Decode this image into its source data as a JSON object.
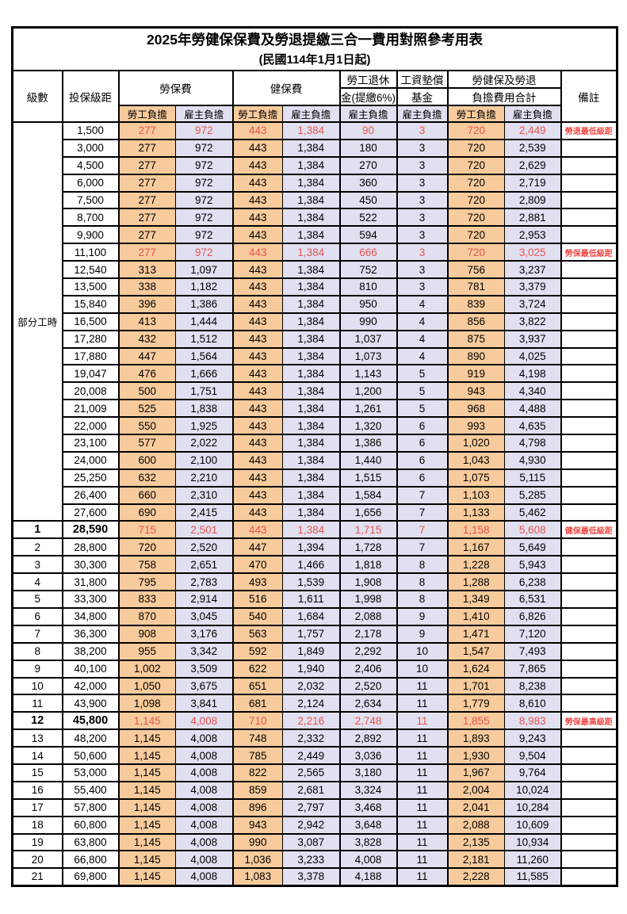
{
  "title": "2025年勞健保保費及勞退提繳三合一費用對照參考用表",
  "subtitle": "(民國114年1月1日起)",
  "header": {
    "level": "級數",
    "bracket": "投保級距",
    "labor_ins": "勞保費",
    "health_ins": "健保費",
    "pension_line1": "勞工退休",
    "pension_line2": "金(提繳6%)",
    "wage_fund_line1": "工資墊償",
    "wage_fund_line2": "基金",
    "total_line1": "勞健保及勞退",
    "total_line2": "負擔費用合計",
    "remark": "備註",
    "employee": "勞工負擔",
    "employer": "雇主負擔"
  },
  "group_label": "部分工時",
  "group_span": 23,
  "colors": {
    "employee_bg": "#f8cb9c",
    "employer_bg": "#e0e0f0",
    "highlight_text": "#e8534f",
    "remark_text": "#ef4a45"
  },
  "rows": [
    {
      "level": "",
      "bracket": "1,500",
      "li_e": "277",
      "li_r": "972",
      "hi_e": "443",
      "hi_r": "1,384",
      "pen": "90",
      "fund": "3",
      "to_e": "720",
      "to_r": "2,449",
      "rem": "勞退最低級距",
      "hl": true,
      "bold": false
    },
    {
      "level": "",
      "bracket": "3,000",
      "li_e": "277",
      "li_r": "972",
      "hi_e": "443",
      "hi_r": "1,384",
      "pen": "180",
      "fund": "3",
      "to_e": "720",
      "to_r": "2,539",
      "rem": "",
      "hl": false,
      "bold": false
    },
    {
      "level": "",
      "bracket": "4,500",
      "li_e": "277",
      "li_r": "972",
      "hi_e": "443",
      "hi_r": "1,384",
      "pen": "270",
      "fund": "3",
      "to_e": "720",
      "to_r": "2,629",
      "rem": "",
      "hl": false,
      "bold": false
    },
    {
      "level": "",
      "bracket": "6,000",
      "li_e": "277",
      "li_r": "972",
      "hi_e": "443",
      "hi_r": "1,384",
      "pen": "360",
      "fund": "3",
      "to_e": "720",
      "to_r": "2,719",
      "rem": "",
      "hl": false,
      "bold": false
    },
    {
      "level": "",
      "bracket": "7,500",
      "li_e": "277",
      "li_r": "972",
      "hi_e": "443",
      "hi_r": "1,384",
      "pen": "450",
      "fund": "3",
      "to_e": "720",
      "to_r": "2,809",
      "rem": "",
      "hl": false,
      "bold": false
    },
    {
      "level": "",
      "bracket": "8,700",
      "li_e": "277",
      "li_r": "972",
      "hi_e": "443",
      "hi_r": "1,384",
      "pen": "522",
      "fund": "3",
      "to_e": "720",
      "to_r": "2,881",
      "rem": "",
      "hl": false,
      "bold": false
    },
    {
      "level": "",
      "bracket": "9,900",
      "li_e": "277",
      "li_r": "972",
      "hi_e": "443",
      "hi_r": "1,384",
      "pen": "594",
      "fund": "3",
      "to_e": "720",
      "to_r": "2,953",
      "rem": "",
      "hl": false,
      "bold": false
    },
    {
      "level": "",
      "bracket": "11,100",
      "li_e": "277",
      "li_r": "972",
      "hi_e": "443",
      "hi_r": "1,384",
      "pen": "666",
      "fund": "3",
      "to_e": "720",
      "to_r": "3,025",
      "rem": "勞保最低級距",
      "hl": true,
      "bold": false
    },
    {
      "level": "",
      "bracket": "12,540",
      "li_e": "313",
      "li_r": "1,097",
      "hi_e": "443",
      "hi_r": "1,384",
      "pen": "752",
      "fund": "3",
      "to_e": "756",
      "to_r": "3,237",
      "rem": "",
      "hl": false,
      "bold": false
    },
    {
      "level": "",
      "bracket": "13,500",
      "li_e": "338",
      "li_r": "1,182",
      "hi_e": "443",
      "hi_r": "1,384",
      "pen": "810",
      "fund": "3",
      "to_e": "781",
      "to_r": "3,379",
      "rem": "",
      "hl": false,
      "bold": false
    },
    {
      "level": "",
      "bracket": "15,840",
      "li_e": "396",
      "li_r": "1,386",
      "hi_e": "443",
      "hi_r": "1,384",
      "pen": "950",
      "fund": "4",
      "to_e": "839",
      "to_r": "3,724",
      "rem": "",
      "hl": false,
      "bold": false
    },
    {
      "level": "",
      "bracket": "16,500",
      "li_e": "413",
      "li_r": "1,444",
      "hi_e": "443",
      "hi_r": "1,384",
      "pen": "990",
      "fund": "4",
      "to_e": "856",
      "to_r": "3,822",
      "rem": "",
      "hl": false,
      "bold": false
    },
    {
      "level": "",
      "bracket": "17,280",
      "li_e": "432",
      "li_r": "1,512",
      "hi_e": "443",
      "hi_r": "1,384",
      "pen": "1,037",
      "fund": "4",
      "to_e": "875",
      "to_r": "3,937",
      "rem": "",
      "hl": false,
      "bold": false
    },
    {
      "level": "",
      "bracket": "17,880",
      "li_e": "447",
      "li_r": "1,564",
      "hi_e": "443",
      "hi_r": "1,384",
      "pen": "1,073",
      "fund": "4",
      "to_e": "890",
      "to_r": "4,025",
      "rem": "",
      "hl": false,
      "bold": false
    },
    {
      "level": "",
      "bracket": "19,047",
      "li_e": "476",
      "li_r": "1,666",
      "hi_e": "443",
      "hi_r": "1,384",
      "pen": "1,143",
      "fund": "5",
      "to_e": "919",
      "to_r": "4,198",
      "rem": "",
      "hl": false,
      "bold": false
    },
    {
      "level": "",
      "bracket": "20,008",
      "li_e": "500",
      "li_r": "1,751",
      "hi_e": "443",
      "hi_r": "1,384",
      "pen": "1,200",
      "fund": "5",
      "to_e": "943",
      "to_r": "4,340",
      "rem": "",
      "hl": false,
      "bold": false
    },
    {
      "level": "",
      "bracket": "21,009",
      "li_e": "525",
      "li_r": "1,838",
      "hi_e": "443",
      "hi_r": "1,384",
      "pen": "1,261",
      "fund": "5",
      "to_e": "968",
      "to_r": "4,488",
      "rem": "",
      "hl": false,
      "bold": false
    },
    {
      "level": "",
      "bracket": "22,000",
      "li_e": "550",
      "li_r": "1,925",
      "hi_e": "443",
      "hi_r": "1,384",
      "pen": "1,320",
      "fund": "6",
      "to_e": "993",
      "to_r": "4,635",
      "rem": "",
      "hl": false,
      "bold": false
    },
    {
      "level": "",
      "bracket": "23,100",
      "li_e": "577",
      "li_r": "2,022",
      "hi_e": "443",
      "hi_r": "1,384",
      "pen": "1,386",
      "fund": "6",
      "to_e": "1,020",
      "to_r": "4,798",
      "rem": "",
      "hl": false,
      "bold": false
    },
    {
      "level": "",
      "bracket": "24,000",
      "li_e": "600",
      "li_r": "2,100",
      "hi_e": "443",
      "hi_r": "1,384",
      "pen": "1,440",
      "fund": "6",
      "to_e": "1,043",
      "to_r": "4,930",
      "rem": "",
      "hl": false,
      "bold": false
    },
    {
      "level": "",
      "bracket": "25,250",
      "li_e": "632",
      "li_r": "2,210",
      "hi_e": "443",
      "hi_r": "1,384",
      "pen": "1,515",
      "fund": "6",
      "to_e": "1,075",
      "to_r": "5,115",
      "rem": "",
      "hl": false,
      "bold": false
    },
    {
      "level": "",
      "bracket": "26,400",
      "li_e": "660",
      "li_r": "2,310",
      "hi_e": "443",
      "hi_r": "1,384",
      "pen": "1,584",
      "fund": "7",
      "to_e": "1,103",
      "to_r": "5,285",
      "rem": "",
      "hl": false,
      "bold": false
    },
    {
      "level": "",
      "bracket": "27,600",
      "li_e": "690",
      "li_r": "2,415",
      "hi_e": "443",
      "hi_r": "1,384",
      "pen": "1,656",
      "fund": "7",
      "to_e": "1,133",
      "to_r": "5,462",
      "rem": "",
      "hl": false,
      "bold": false
    },
    {
      "level": "1",
      "bracket": "28,590",
      "li_e": "715",
      "li_r": "2,501",
      "hi_e": "443",
      "hi_r": "1,384",
      "pen": "1,715",
      "fund": "7",
      "to_e": "1,158",
      "to_r": "5,608",
      "rem": "健保最低級距",
      "hl": true,
      "bold": true
    },
    {
      "level": "2",
      "bracket": "28,800",
      "li_e": "720",
      "li_r": "2,520",
      "hi_e": "447",
      "hi_r": "1,394",
      "pen": "1,728",
      "fund": "7",
      "to_e": "1,167",
      "to_r": "5,649",
      "rem": "",
      "hl": false,
      "bold": false
    },
    {
      "level": "3",
      "bracket": "30,300",
      "li_e": "758",
      "li_r": "2,651",
      "hi_e": "470",
      "hi_r": "1,466",
      "pen": "1,818",
      "fund": "8",
      "to_e": "1,228",
      "to_r": "5,943",
      "rem": "",
      "hl": false,
      "bold": false
    },
    {
      "level": "4",
      "bracket": "31,800",
      "li_e": "795",
      "li_r": "2,783",
      "hi_e": "493",
      "hi_r": "1,539",
      "pen": "1,908",
      "fund": "8",
      "to_e": "1,288",
      "to_r": "6,238",
      "rem": "",
      "hl": false,
      "bold": false
    },
    {
      "level": "5",
      "bracket": "33,300",
      "li_e": "833",
      "li_r": "2,914",
      "hi_e": "516",
      "hi_r": "1,611",
      "pen": "1,998",
      "fund": "8",
      "to_e": "1,349",
      "to_r": "6,531",
      "rem": "",
      "hl": false,
      "bold": false
    },
    {
      "level": "6",
      "bracket": "34,800",
      "li_e": "870",
      "li_r": "3,045",
      "hi_e": "540",
      "hi_r": "1,684",
      "pen": "2,088",
      "fund": "9",
      "to_e": "1,410",
      "to_r": "6,826",
      "rem": "",
      "hl": false,
      "bold": false
    },
    {
      "level": "7",
      "bracket": "36,300",
      "li_e": "908",
      "li_r": "3,176",
      "hi_e": "563",
      "hi_r": "1,757",
      "pen": "2,178",
      "fund": "9",
      "to_e": "1,471",
      "to_r": "7,120",
      "rem": "",
      "hl": false,
      "bold": false
    },
    {
      "level": "8",
      "bracket": "38,200",
      "li_e": "955",
      "li_r": "3,342",
      "hi_e": "592",
      "hi_r": "1,849",
      "pen": "2,292",
      "fund": "10",
      "to_e": "1,547",
      "to_r": "7,493",
      "rem": "",
      "hl": false,
      "bold": false
    },
    {
      "level": "9",
      "bracket": "40,100",
      "li_e": "1,002",
      "li_r": "3,509",
      "hi_e": "622",
      "hi_r": "1,940",
      "pen": "2,406",
      "fund": "10",
      "to_e": "1,624",
      "to_r": "7,865",
      "rem": "",
      "hl": false,
      "bold": false
    },
    {
      "level": "10",
      "bracket": "42,000",
      "li_e": "1,050",
      "li_r": "3,675",
      "hi_e": "651",
      "hi_r": "2,032",
      "pen": "2,520",
      "fund": "11",
      "to_e": "1,701",
      "to_r": "8,238",
      "rem": "",
      "hl": false,
      "bold": false
    },
    {
      "level": "11",
      "bracket": "43,900",
      "li_e": "1,098",
      "li_r": "3,841",
      "hi_e": "681",
      "hi_r": "2,124",
      "pen": "2,634",
      "fund": "11",
      "to_e": "1,779",
      "to_r": "8,610",
      "rem": "",
      "hl": false,
      "bold": false
    },
    {
      "level": "12",
      "bracket": "45,800",
      "li_e": "1,145",
      "li_r": "4,008",
      "hi_e": "710",
      "hi_r": "2,216",
      "pen": "2,748",
      "fund": "11",
      "to_e": "1,855",
      "to_r": "8,983",
      "rem": "勞保最高級距",
      "hl": true,
      "bold": true
    },
    {
      "level": "13",
      "bracket": "48,200",
      "li_e": "1,145",
      "li_r": "4,008",
      "hi_e": "748",
      "hi_r": "2,332",
      "pen": "2,892",
      "fund": "11",
      "to_e": "1,893",
      "to_r": "9,243",
      "rem": "",
      "hl": false,
      "bold": false
    },
    {
      "level": "14",
      "bracket": "50,600",
      "li_e": "1,145",
      "li_r": "4,008",
      "hi_e": "785",
      "hi_r": "2,449",
      "pen": "3,036",
      "fund": "11",
      "to_e": "1,930",
      "to_r": "9,504",
      "rem": "",
      "hl": false,
      "bold": false
    },
    {
      "level": "15",
      "bracket": "53,000",
      "li_e": "1,145",
      "li_r": "4,008",
      "hi_e": "822",
      "hi_r": "2,565",
      "pen": "3,180",
      "fund": "11",
      "to_e": "1,967",
      "to_r": "9,764",
      "rem": "",
      "hl": false,
      "bold": false
    },
    {
      "level": "16",
      "bracket": "55,400",
      "li_e": "1,145",
      "li_r": "4,008",
      "hi_e": "859",
      "hi_r": "2,681",
      "pen": "3,324",
      "fund": "11",
      "to_e": "2,004",
      "to_r": "10,024",
      "rem": "",
      "hl": false,
      "bold": false
    },
    {
      "level": "17",
      "bracket": "57,800",
      "li_e": "1,145",
      "li_r": "4,008",
      "hi_e": "896",
      "hi_r": "2,797",
      "pen": "3,468",
      "fund": "11",
      "to_e": "2,041",
      "to_r": "10,284",
      "rem": "",
      "hl": false,
      "bold": false
    },
    {
      "level": "18",
      "bracket": "60,800",
      "li_e": "1,145",
      "li_r": "4,008",
      "hi_e": "943",
      "hi_r": "2,942",
      "pen": "3,648",
      "fund": "11",
      "to_e": "2,088",
      "to_r": "10,609",
      "rem": "",
      "hl": false,
      "bold": false
    },
    {
      "level": "19",
      "bracket": "63,800",
      "li_e": "1,145",
      "li_r": "4,008",
      "hi_e": "990",
      "hi_r": "3,087",
      "pen": "3,828",
      "fund": "11",
      "to_e": "2,135",
      "to_r": "10,934",
      "rem": "",
      "hl": false,
      "bold": false
    },
    {
      "level": "20",
      "bracket": "66,800",
      "li_e": "1,145",
      "li_r": "4,008",
      "hi_e": "1,036",
      "hi_r": "3,233",
      "pen": "4,008",
      "fund": "11",
      "to_e": "2,181",
      "to_r": "11,260",
      "rem": "",
      "hl": false,
      "bold": false
    },
    {
      "level": "21",
      "bracket": "69,800",
      "li_e": "1,145",
      "li_r": "4,008",
      "hi_e": "1,083",
      "hi_r": "3,378",
      "pen": "4,188",
      "fund": "11",
      "to_e": "2,228",
      "to_r": "11,585",
      "rem": "",
      "hl": false,
      "bold": false
    }
  ]
}
